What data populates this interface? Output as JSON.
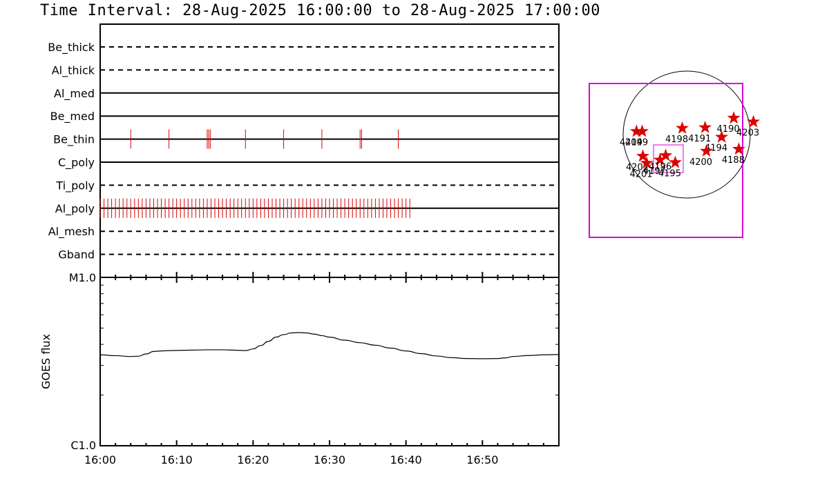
{
  "title": "Time Interval: 28-Aug-2025 16:00:00 to 28-Aug-2025 17:00:00",
  "colors": {
    "event": "#dd0000",
    "box": "#dd00dd",
    "line": "#000000"
  },
  "chart_data": [
    {
      "type": "timeline",
      "x_range_minutes": [
        0,
        60
      ],
      "x_tick_labels": [
        "16:00",
        "16:10",
        "16:20",
        "16:30",
        "16:40",
        "16:50"
      ],
      "x_tick_values": [
        0,
        10,
        20,
        30,
        40,
        50
      ],
      "channels": [
        {
          "name": "Be_thick",
          "style": "dashed",
          "events": []
        },
        {
          "name": "Al_thick",
          "style": "dashed",
          "events": []
        },
        {
          "name": "Al_med",
          "style": "solid",
          "events": []
        },
        {
          "name": "Be_med",
          "style": "solid",
          "events": []
        },
        {
          "name": "Be_thin",
          "style": "solid",
          "events": [
            4.0,
            9.0,
            14.0,
            14.2,
            14.4,
            19.0,
            24.0,
            29.0,
            34.0,
            34.2,
            39.0
          ]
        },
        {
          "name": "C_poly",
          "style": "solid",
          "events": []
        },
        {
          "name": "Ti_poly",
          "style": "dashed",
          "events": []
        },
        {
          "name": "Al_poly",
          "style": "solid",
          "events_interval": {
            "start": 0.0,
            "end": 40.5,
            "step": 0.5
          }
        },
        {
          "name": "Al_mesh",
          "style": "dashed",
          "events": []
        },
        {
          "name": "Gband",
          "style": "dashed",
          "events": []
        }
      ]
    },
    {
      "type": "line",
      "ylabel": "GOES flux",
      "y_scale": "log",
      "y_tick_labels": [
        "M1.0",
        "C1.0"
      ],
      "x_range_minutes": [
        0,
        60
      ],
      "x": [
        0,
        2,
        4,
        5,
        6,
        7,
        8,
        9,
        10,
        12,
        14,
        16,
        18,
        19,
        20,
        21,
        22,
        23,
        24,
        25,
        26,
        27,
        28,
        29,
        30,
        32,
        34,
        36,
        38,
        40,
        42,
        44,
        46,
        48,
        50,
        52,
        53,
        54,
        56,
        58,
        60
      ],
      "y_fraction": [
        0.54,
        0.535,
        0.53,
        0.532,
        0.545,
        0.56,
        0.563,
        0.565,
        0.566,
        0.568,
        0.57,
        0.57,
        0.567,
        0.565,
        0.575,
        0.595,
        0.62,
        0.645,
        0.66,
        0.67,
        0.672,
        0.67,
        0.663,
        0.654,
        0.645,
        0.627,
        0.612,
        0.597,
        0.58,
        0.563,
        0.547,
        0.533,
        0.523,
        0.518,
        0.517,
        0.518,
        0.522,
        0.53,
        0.536,
        0.54,
        0.542
      ]
    },
    {
      "type": "scatter",
      "description": "solar disk map",
      "points": [
        {
          "label": "4204",
          "x": -0.79,
          "y": 0.05
        },
        {
          "label": "4199",
          "x": -0.7,
          "y": 0.05
        },
        {
          "label": "4198",
          "x": -0.07,
          "y": 0.1
        },
        {
          "label": "4191",
          "x": 0.29,
          "y": 0.11
        },
        {
          "label": "4190",
          "x": 0.74,
          "y": 0.26
        },
        {
          "label": "4203",
          "x": 1.05,
          "y": 0.2
        },
        {
          "label": "4194",
          "x": 0.55,
          "y": -0.04
        },
        {
          "label": "4188",
          "x": 0.82,
          "y": -0.23
        },
        {
          "label": "4200",
          "x": 0.31,
          "y": -0.26
        },
        {
          "label": "4202",
          "x": -0.69,
          "y": -0.34
        },
        {
          "label": "4201",
          "x": -0.63,
          "y": -0.45
        },
        {
          "label": "4197",
          "x": -0.42,
          "y": -0.4
        },
        {
          "label": "4196",
          "x": -0.33,
          "y": -0.33
        },
        {
          "label": "4195",
          "x": -0.18,
          "y": -0.44
        }
      ]
    }
  ]
}
